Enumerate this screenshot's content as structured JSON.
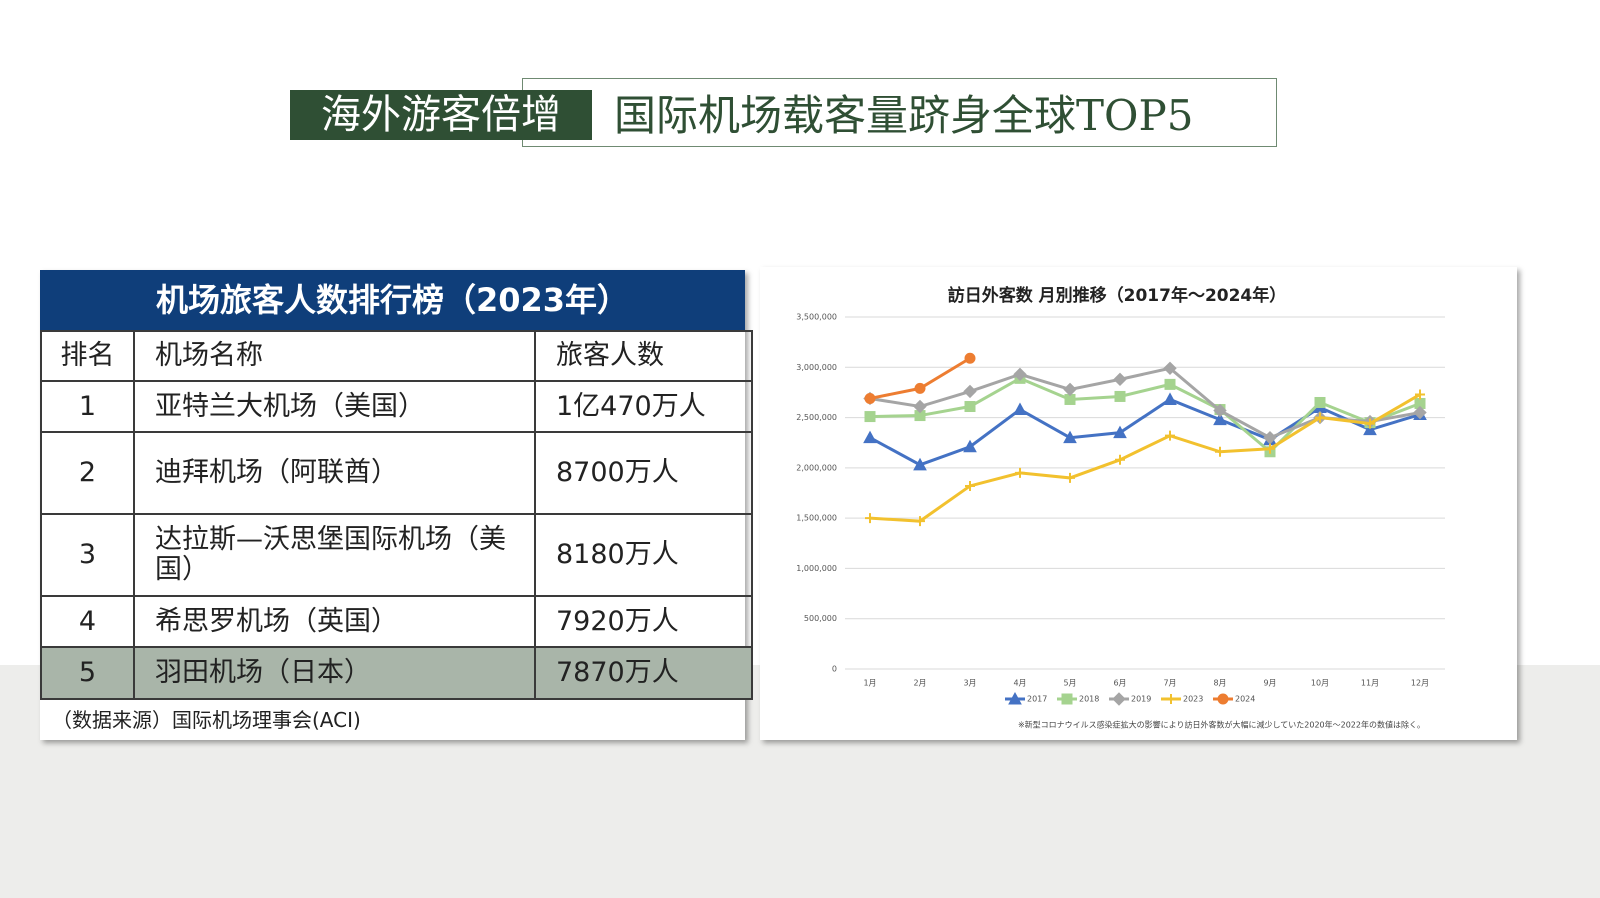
{
  "header": {
    "title_highlight": "海外游客倍增",
    "title": "国际机场载客量跻身全球TOP5"
  },
  "table": {
    "title": "机场旅客人数排行榜（2023年）",
    "columns": [
      "排名",
      "机场名称",
      "旅客人数"
    ],
    "rows": [
      [
        "1",
        "亚特兰大机场（美国）",
        "1亿470万人"
      ],
      [
        "2",
        "迪拜机场（阿联酋）",
        "8700万人"
      ],
      [
        "3",
        "达拉斯—沃思堡国际机场（美国）",
        "8180万人"
      ],
      [
        "4",
        "希思罗机场（英国）",
        "7920万人"
      ],
      [
        "5",
        "羽田机场（日本）",
        "7870万人"
      ]
    ],
    "source": "（数据来源）国际机场理事会(ACI)"
  },
  "chart_data": {
    "type": "line",
    "title": "訪日外客数 月別推移（2017年～2024年）",
    "categories": [
      "1月",
      "2月",
      "3月",
      "4月",
      "5月",
      "6月",
      "7月",
      "8月",
      "9月",
      "10月",
      "11月",
      "12月"
    ],
    "series": [
      {
        "name": "2017",
        "color": "#4472c4",
        "marker": "triangle",
        "values": [
          2300000,
          2030000,
          2210000,
          2580000,
          2300000,
          2350000,
          2680000,
          2480000,
          2280000,
          2600000,
          2380000,
          2530000
        ]
      },
      {
        "name": "2018",
        "color": "#a5d38f",
        "marker": "square",
        "values": [
          2510000,
          2520000,
          2610000,
          2890000,
          2680000,
          2710000,
          2830000,
          2580000,
          2160000,
          2650000,
          2450000,
          2640000
        ]
      },
      {
        "name": "2019",
        "color": "#a5a5a5",
        "marker": "diamond",
        "values": [
          2690000,
          2610000,
          2760000,
          2930000,
          2780000,
          2880000,
          2990000,
          2570000,
          2300000,
          2500000,
          2460000,
          2550000
        ]
      },
      {
        "name": "2023",
        "color": "#f2c12e",
        "marker": "plus",
        "values": [
          1500000,
          1470000,
          1820000,
          1950000,
          1900000,
          2080000,
          2320000,
          2160000,
          2190000,
          2500000,
          2440000,
          2730000
        ]
      },
      {
        "name": "2024",
        "color": "#ed7d31",
        "marker": "circle",
        "values": [
          2690000,
          2790000,
          3090000,
          null,
          null,
          null,
          null,
          null,
          null,
          null,
          null,
          null
        ]
      }
    ],
    "ylim": [
      0,
      3500000
    ],
    "yticks": [
      0,
      {
        "value": 500000,
        "label": "500,000"
      },
      {
        "value": 1000000,
        "label": "1,000,000"
      },
      {
        "value": 1500000,
        "label": "1,500,000"
      },
      {
        "value": 2000000,
        "label": "2,000,000"
      },
      {
        "value": 2500000,
        "label": "2,500,000"
      },
      {
        "value": 3000000,
        "label": "3,000,000"
      },
      {
        "value": 3500000,
        "label": "3,500,000"
      }
    ],
    "grid": true,
    "legend": "bottom",
    "note": "※新型コロナウイルス感染症拡大の影響により訪日外客数が大幅に減少していた2020年～2022年の数値は除く。"
  }
}
